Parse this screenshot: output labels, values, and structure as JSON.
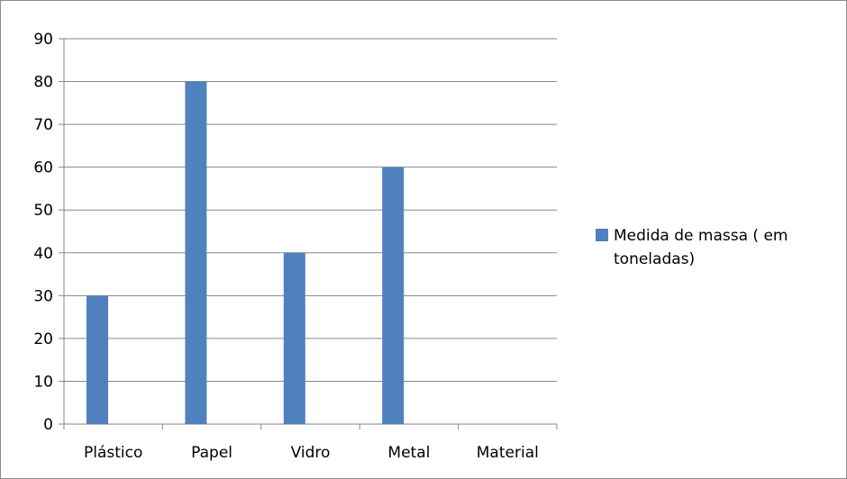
{
  "chart_data": {
    "type": "bar",
    "title": "",
    "xlabel": "",
    "ylabel": "",
    "categories": [
      "Plástico",
      "Papel",
      "Vidro",
      "Metal",
      "Material"
    ],
    "series": [
      {
        "name": "Medida de massa ( em toneladas)",
        "values": [
          30,
          80,
          40,
          60,
          null
        ]
      }
    ],
    "ylim": [
      0,
      90
    ],
    "yticks": [
      0,
      10,
      20,
      30,
      40,
      50,
      60,
      70,
      80,
      90
    ],
    "grid": true,
    "legend": {
      "position": "right",
      "lines": [
        "Medida de massa ( em",
        "toneladas)"
      ]
    },
    "colors": {
      "bar": "#4f81bd",
      "grid": "#868686",
      "axis": "#868686"
    }
  }
}
